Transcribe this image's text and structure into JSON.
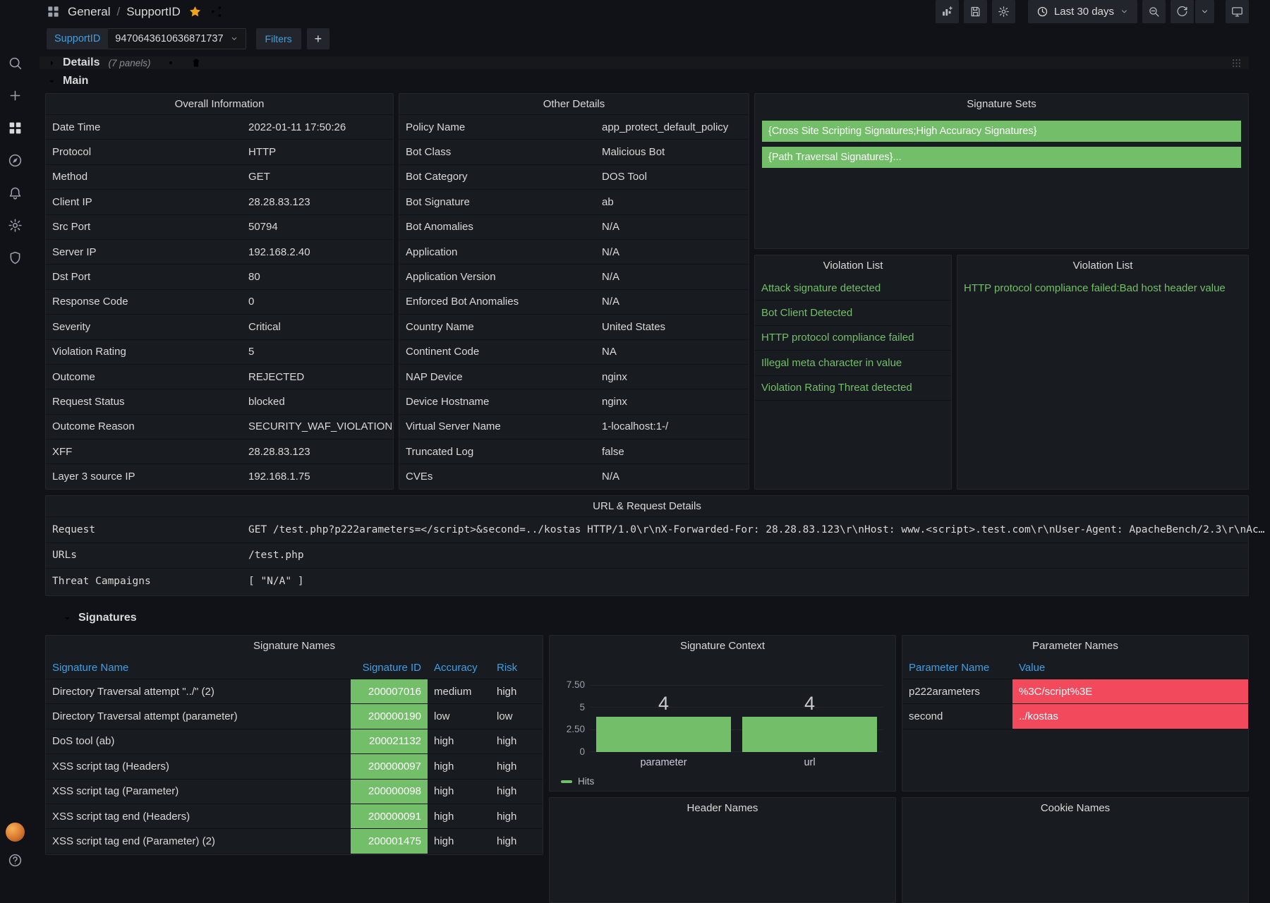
{
  "colors": {
    "green": "#73bf69",
    "red": "#f2495c",
    "blue": "#3da0e8",
    "orange": "#f0a21a",
    "page_bg": "#111217",
    "panel_bg": "#181b1f"
  },
  "sidebar": {
    "icons": [
      "grafana-logo",
      "search",
      "create",
      "dashboards",
      "explore",
      "alerting",
      "configuration",
      "server-admin"
    ],
    "bottom_icons": [
      "user-avatar",
      "help"
    ]
  },
  "header": {
    "breadcrumb": {
      "section": "General",
      "separator": "/",
      "page": "SupportID"
    },
    "time_range_label": "Last 30 days"
  },
  "submenu": {
    "variable_label": "SupportID",
    "variable_value": "9470643610636871737",
    "filters_label": "Filters",
    "add_filter_label": "+"
  },
  "rows": {
    "details": {
      "title": "Details",
      "panel_count": "(7 panels)"
    },
    "main": {
      "title": "Main"
    },
    "signatures": {
      "title": "Signatures"
    }
  },
  "panels": {
    "overall_information": {
      "title": "Overall Information",
      "rows": [
        [
          "Date Time",
          "2022-01-11 17:50:26"
        ],
        [
          "Protocol",
          "HTTP"
        ],
        [
          "Method",
          "GET"
        ],
        [
          "Client IP",
          "28.28.83.123"
        ],
        [
          "Src Port",
          "50794"
        ],
        [
          "Server IP",
          "192.168.2.40"
        ],
        [
          "Dst Port",
          "80"
        ],
        [
          "Response Code",
          "0"
        ],
        [
          "Severity",
          "Critical"
        ],
        [
          "Violation Rating",
          "5"
        ],
        [
          "Outcome",
          "REJECTED"
        ],
        [
          "Request Status",
          "blocked"
        ],
        [
          "Outcome Reason",
          "SECURITY_WAF_VIOLATION"
        ],
        [
          "XFF",
          "28.28.83.123"
        ],
        [
          "Layer 3 source IP",
          "192.168.1.75"
        ]
      ]
    },
    "other_details": {
      "title": "Other Details",
      "rows": [
        [
          "Policy Name",
          "app_protect_default_policy"
        ],
        [
          "Bot Class",
          "Malicious Bot"
        ],
        [
          "Bot Category",
          "DOS Tool"
        ],
        [
          "Bot Signature",
          "ab"
        ],
        [
          "Bot Anomalies",
          "N/A"
        ],
        [
          "Application",
          "N/A"
        ],
        [
          "Application Version",
          "N/A"
        ],
        [
          "Enforced Bot Anomalies",
          "N/A"
        ],
        [
          "Country Name",
          "United States"
        ],
        [
          "Continent Code",
          "NA"
        ],
        [
          "NAP Device",
          "nginx"
        ],
        [
          "Device Hostname",
          "nginx"
        ],
        [
          "Virtual Server Name",
          "1-localhost:1-/"
        ],
        [
          "Truncated Log",
          "false"
        ],
        [
          "CVEs",
          "N/A"
        ]
      ]
    },
    "signature_sets": {
      "title": "Signature Sets",
      "items": [
        "{Cross Site Scripting Signatures;High Accuracy Signatures}",
        "{Path Traversal Signatures}..."
      ]
    },
    "violation_list_left": {
      "title": "Violation List",
      "items": [
        "Attack signature detected",
        "Bot Client Detected",
        "HTTP protocol compliance failed",
        "Illegal meta character in value",
        "Violation Rating Threat detected"
      ]
    },
    "violation_list_right": {
      "title": "Violation List",
      "items": [
        "HTTP protocol compliance failed:Bad host header value"
      ]
    },
    "url_request_details": {
      "title": "URL & Request Details",
      "rows": [
        [
          "Request",
          "GET /test.php?p222arameters=</script>&second=../kostas HTTP/1.0\\r\\nX-Forwarded-For: 28.28.83.123\\r\\nHost: www.<script>.test.com\\r\\nUser-Agent: ApacheBench/2.3\\r\\nAc…"
        ],
        [
          "URLs",
          "/test.php"
        ],
        [
          "Threat Campaigns",
          "[ \"N/A\" ]"
        ]
      ]
    },
    "signature_names": {
      "title": "Signature Names",
      "columns": [
        "Signature Name",
        "Signature ID",
        "Accuracy",
        "Risk"
      ],
      "rows": [
        {
          "name": "Directory Traversal attempt \"../\" (2)",
          "id": "200007016",
          "accuracy": "medium",
          "risk": "high"
        },
        {
          "name": "Directory Traversal attempt (parameter)",
          "id": "200000190",
          "accuracy": "low",
          "risk": "low"
        },
        {
          "name": "DoS tool (ab)",
          "id": "200021132",
          "accuracy": "high",
          "risk": "high"
        },
        {
          "name": "XSS script tag (Headers)",
          "id": "200000097",
          "accuracy": "high",
          "risk": "high"
        },
        {
          "name": "XSS script tag (Parameter)",
          "id": "200000098",
          "accuracy": "high",
          "risk": "high"
        },
        {
          "name": "XSS script tag end (Headers)",
          "id": "200000091",
          "accuracy": "high",
          "risk": "high"
        },
        {
          "name": "XSS script tag end (Parameter) (2)",
          "id": "200001475",
          "accuracy": "high",
          "risk": "high"
        }
      ]
    },
    "parameter_names": {
      "title": "Parameter Names",
      "columns": [
        "Parameter Name",
        "Value"
      ],
      "rows": [
        {
          "name": "p222arameters",
          "value": "%3C/script%3E"
        },
        {
          "name": "second",
          "value": "../kostas"
        }
      ]
    },
    "header_names": {
      "title": "Header Names"
    },
    "cookie_names": {
      "title": "Cookie Names"
    }
  },
  "chart_data": {
    "type": "bar",
    "title": "Signature Context",
    "categories": [
      "parameter",
      "url"
    ],
    "series": [
      {
        "name": "Hits",
        "values": [
          4,
          4
        ]
      }
    ],
    "xlabel": "",
    "ylabel": "",
    "ylim": [
      0,
      8.75
    ],
    "yticks": [
      0,
      2.5,
      5,
      7.5
    ],
    "ytick_labels": [
      "0",
      "2.50",
      "5",
      "7.50"
    ],
    "bar_color": "#73bf69",
    "grid": true,
    "legend_position": "bottom-left"
  }
}
